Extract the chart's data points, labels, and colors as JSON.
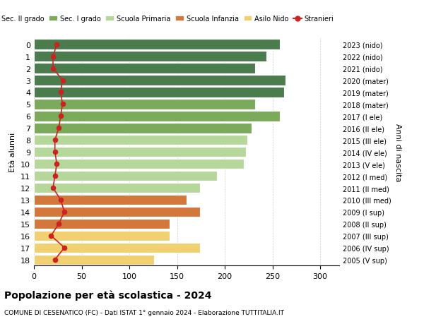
{
  "ages": [
    18,
    17,
    16,
    15,
    14,
    13,
    12,
    11,
    10,
    9,
    8,
    7,
    6,
    5,
    4,
    3,
    2,
    1,
    0
  ],
  "anni_nascita": [
    "2005 (V sup)",
    "2006 (IV sup)",
    "2007 (III sup)",
    "2008 (II sup)",
    "2009 (I sup)",
    "2010 (III med)",
    "2011 (II med)",
    "2012 (I med)",
    "2013 (V ele)",
    "2014 (IV ele)",
    "2015 (III ele)",
    "2016 (II ele)",
    "2017 (I ele)",
    "2018 (mater)",
    "2019 (mater)",
    "2020 (mater)",
    "2021 (nido)",
    "2022 (nido)",
    "2023 (nido)"
  ],
  "bar_values": [
    258,
    244,
    232,
    264,
    262,
    232,
    258,
    228,
    224,
    222,
    220,
    192,
    174,
    160,
    174,
    142,
    142,
    174,
    126
  ],
  "bar_colors": [
    "#4a7c4e",
    "#4a7c4e",
    "#4a7c4e",
    "#4a7c4e",
    "#4a7c4e",
    "#7aaa5a",
    "#7aaa5a",
    "#7aaa5a",
    "#b5d89a",
    "#b5d89a",
    "#b5d89a",
    "#b5d89a",
    "#b5d89a",
    "#d4773a",
    "#d4773a",
    "#d4773a",
    "#f0d070",
    "#f0d070",
    "#f0d070"
  ],
  "stranieri_values": [
    24,
    20,
    20,
    30,
    28,
    30,
    28,
    26,
    22,
    22,
    24,
    22,
    20,
    28,
    32,
    26,
    18,
    32,
    22
  ],
  "legend_labels": [
    "Sec. II grado",
    "Sec. I grado",
    "Scuola Primaria",
    "Scuola Infanzia",
    "Asilo Nido",
    "Stranieri"
  ],
  "legend_colors": [
    "#4a7c4e",
    "#7aaa5a",
    "#b5d89a",
    "#d4773a",
    "#f0d070",
    "#cc2222"
  ],
  "ylabel": "Età alunni",
  "ylabel_right": "Anni di nascita",
  "title": "Popolazione per età scolastica - 2024",
  "subtitle": "COMUNE DI CESENATICO (FC) - Dati ISTAT 1° gennaio 2024 - Elaborazione TUTTITALIA.IT",
  "xlim": [
    0,
    320
  ],
  "xticks": [
    0,
    50,
    100,
    150,
    200,
    250,
    300
  ],
  "bg_color": "#ffffff",
  "bar_edgecolor": "#ffffff",
  "grid_color": "#cccccc"
}
